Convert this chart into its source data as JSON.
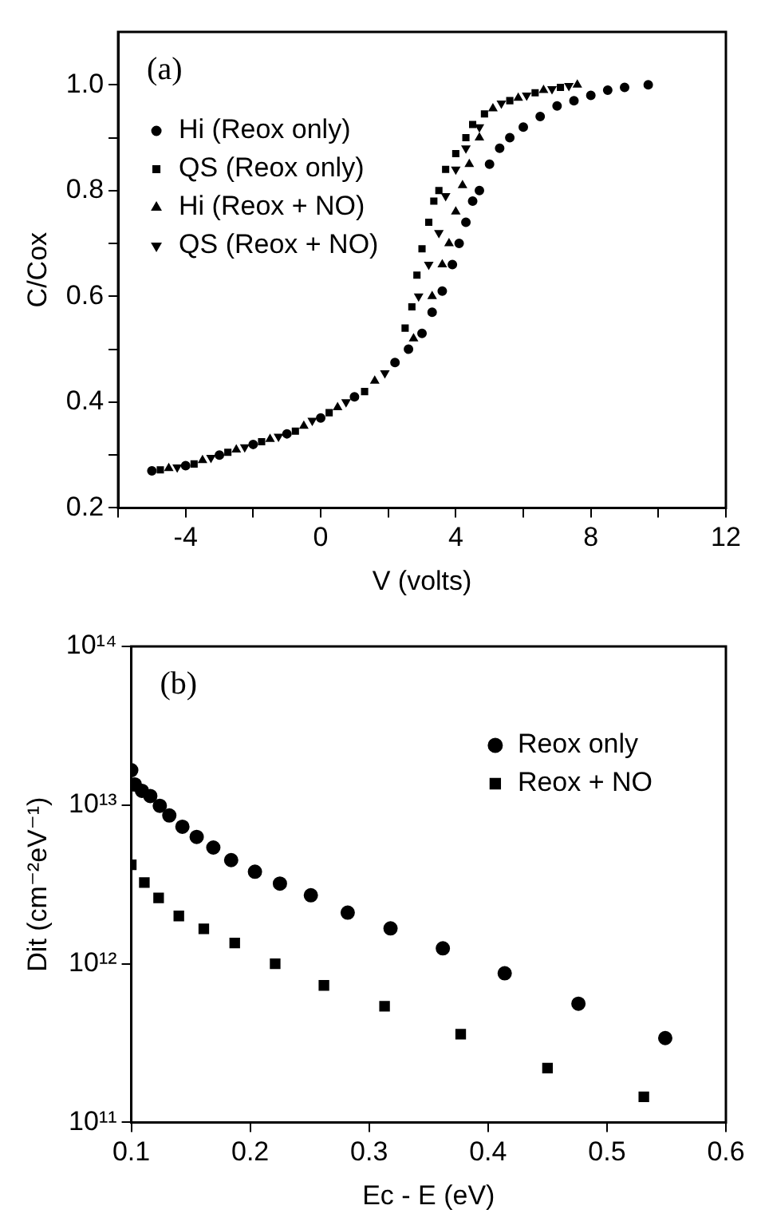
{
  "chart_data": [
    {
      "type": "scatter",
      "xlabel": "V (volts)",
      "ylabel": "C/Cox",
      "annotations": [
        "(a)"
      ],
      "legend": "top left",
      "grid": false,
      "xlim": [
        -6,
        12
      ],
      "xticks": [
        {
          "value": -6,
          "label": null
        },
        -4,
        {
          "value": -2,
          "label": null
        },
        0,
        {
          "value": 2,
          "label": null
        },
        4,
        {
          "value": 6,
          "label": null
        },
        8,
        {
          "value": 10,
          "label": null
        },
        12
      ],
      "ylim": [
        0.2,
        1.1
      ],
      "yticks": [
        {
          "value": 0.2,
          "label": "0.2"
        },
        {
          "value": 0.3,
          "label": null
        },
        {
          "value": 0.4,
          "label": "0.4"
        },
        {
          "value": 0.5,
          "label": null
        },
        {
          "value": 0.6,
          "label": "0.6"
        },
        {
          "value": 0.7,
          "label": null
        },
        {
          "value": 0.8,
          "label": "0.8"
        },
        {
          "value": 0.9,
          "label": null
        },
        {
          "value": 1.0,
          "label": "1.0"
        }
      ],
      "series": [
        {
          "name": "Hi (Reox only)",
          "color": "#000000",
          "marker": "circle",
          "x": [
            -5,
            -4,
            -3,
            -2,
            -1,
            0,
            1,
            2.2,
            2.6,
            3,
            3.3,
            3.6,
            3.9,
            4.1,
            4.3,
            4.5,
            4.7,
            5.0,
            5.3,
            5.6,
            6,
            6.5,
            7,
            7.5,
            8,
            8.5,
            9,
            9.7
          ],
          "values": [
            0.27,
            0.28,
            0.3,
            0.32,
            0.34,
            0.37,
            0.41,
            0.475,
            0.5,
            0.53,
            0.57,
            0.61,
            0.66,
            0.7,
            0.74,
            0.78,
            0.8,
            0.85,
            0.88,
            0.9,
            0.92,
            0.94,
            0.96,
            0.97,
            0.98,
            0.99,
            0.995,
            1.0
          ]
        },
        {
          "name": "QS (Reox only)",
          "color": "#000000",
          "marker": "square",
          "x": [
            -4.75,
            -3.75,
            -2.75,
            -1.75,
            -0.75,
            0.25,
            1.3,
            2.5,
            2.7,
            2.85,
            3.0,
            3.2,
            3.35,
            3.5,
            3.7,
            4.0,
            4.3,
            4.5,
            4.85,
            5.6,
            6.35,
            7.1
          ],
          "values": [
            0.272,
            0.283,
            0.305,
            0.325,
            0.345,
            0.38,
            0.42,
            0.54,
            0.58,
            0.64,
            0.69,
            0.74,
            0.78,
            0.8,
            0.84,
            0.87,
            0.9,
            0.925,
            0.945,
            0.97,
            0.985,
            0.995
          ]
        },
        {
          "name": "Hi (Reox + NO)",
          "color": "#000000",
          "marker": "triangle",
          "x": [
            -4.5,
            -3.5,
            -2.5,
            -1.5,
            -0.5,
            0.5,
            1.6,
            2.75,
            3.3,
            3.6,
            3.8,
            4.0,
            4.2,
            4.4,
            4.7,
            5.1,
            5.85,
            6.6,
            7.6
          ],
          "values": [
            0.275,
            0.29,
            0.31,
            0.33,
            0.355,
            0.39,
            0.44,
            0.52,
            0.6,
            0.66,
            0.7,
            0.76,
            0.81,
            0.85,
            0.9,
            0.955,
            0.975,
            0.99,
            1.0
          ]
        },
        {
          "name": "QS (Reox + NO)",
          "color": "#000000",
          "marker": "triangle-down",
          "x": [
            -4.25,
            -3.25,
            -2.25,
            -1.25,
            -0.25,
            0.75,
            1.9,
            2.9,
            3.2,
            3.5,
            3.7,
            4.0,
            4.3,
            4.7,
            5.35,
            6.1,
            6.85,
            7.35
          ],
          "values": [
            0.277,
            0.295,
            0.315,
            0.335,
            0.365,
            0.4,
            0.455,
            0.6,
            0.66,
            0.72,
            0.79,
            0.84,
            0.88,
            0.92,
            0.965,
            0.98,
            0.992,
            0.998
          ]
        }
      ]
    },
    {
      "type": "scatter",
      "xlabel": "Ec - E (eV)",
      "ylabel": "Dit (cm⁻²eV⁻¹)",
      "annotations": [
        "(b)"
      ],
      "legend": "top right",
      "grid": false,
      "log": "y",
      "xlim": [
        0.1,
        0.6
      ],
      "xticks": [
        0.1,
        0.2,
        0.3,
        0.4,
        0.5,
        0.6
      ],
      "ylim": [
        100000000000.0,
        100000000000000.0
      ],
      "yticks": [
        {
          "value": 100000000000.0,
          "label": "10¹¹"
        },
        {
          "value": 1000000000000.0,
          "label": "10¹²"
        },
        {
          "value": 10000000000000.0,
          "label": "10¹³"
        },
        {
          "value": 100000000000000.0,
          "label": "10¹⁴"
        }
      ],
      "series": [
        {
          "name": "Reox only",
          "color": "#000000",
          "marker": "circle",
          "x": [
            0.1,
            0.103,
            0.109,
            0.116,
            0.124,
            0.132,
            0.143,
            0.155,
            0.169,
            0.184,
            0.204,
            0.225,
            0.251,
            0.282,
            0.318,
            0.362,
            0.414,
            0.476,
            0.549
          ],
          "values": [
            16600000000000.0,
            13500000000000.0,
            12300000000000.0,
            11400000000000.0,
            9900000000000.0,
            8600000000000.0,
            7300000000000.0,
            6300000000000.0,
            5400000000000.0,
            4500000000000.0,
            3800000000000.0,
            3200000000000.0,
            2700000000000.0,
            2100000000000.0,
            1670000000000.0,
            1250000000000.0,
            870000000000.0,
            560000000000.0,
            340000000000.0
          ]
        },
        {
          "name": "Reox + NO",
          "color": "#000000",
          "marker": "square",
          "x": [
            0.1,
            0.111,
            0.123,
            0.14,
            0.161,
            0.187,
            0.221,
            0.262,
            0.313,
            0.377,
            0.45,
            0.531
          ],
          "values": [
            4200000000000.0,
            3250000000000.0,
            2600000000000.0,
            2000000000000.0,
            1660000000000.0,
            1350000000000.0,
            1000000000000.0,
            730000000000.0,
            540000000000.0,
            360000000000.0,
            220000000000.0,
            145000000000.0
          ]
        }
      ]
    }
  ]
}
